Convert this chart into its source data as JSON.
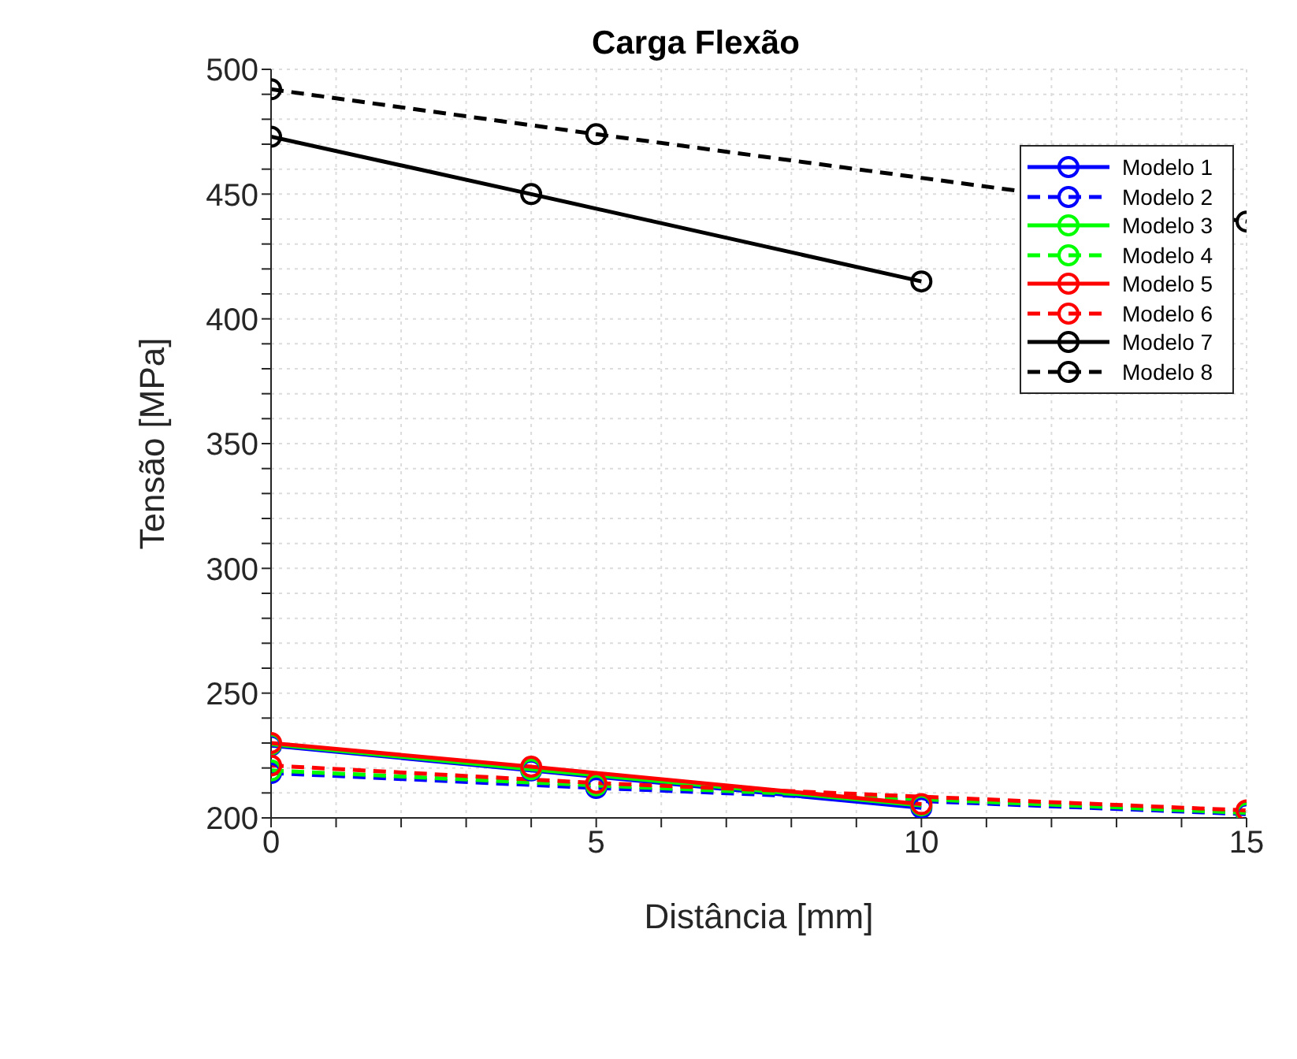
{
  "chart_data": {
    "type": "line",
    "title": "Carga Flexão",
    "xlabel": "Distância [mm]",
    "ylabel": "Tensão [MPa]",
    "xlim": [
      0,
      15
    ],
    "ylim": [
      200,
      500
    ],
    "xticks": [
      0,
      {
        "value": 1,
        "label": null
      },
      {
        "value": 2,
        "label": null
      },
      {
        "value": 3,
        "label": null
      },
      {
        "value": 4,
        "label": null
      },
      5,
      {
        "value": 6,
        "label": null
      },
      {
        "value": 7,
        "label": null
      },
      {
        "value": 8,
        "label": null
      },
      {
        "value": 9,
        "label": null
      },
      10,
      {
        "value": 11,
        "label": null
      },
      {
        "value": 12,
        "label": null
      },
      {
        "value": 13,
        "label": null
      },
      {
        "value": 14,
        "label": null
      },
      15
    ],
    "yticks": [
      200,
      {
        "value": 210,
        "label": null
      },
      {
        "value": 220,
        "label": null
      },
      {
        "value": 230,
        "label": null
      },
      {
        "value": 240,
        "label": null
      },
      250,
      {
        "value": 260,
        "label": null
      },
      {
        "value": 270,
        "label": null
      },
      {
        "value": 280,
        "label": null
      },
      {
        "value": 290,
        "label": null
      },
      300,
      {
        "value": 310,
        "label": null
      },
      {
        "value": 320,
        "label": null
      },
      {
        "value": 330,
        "label": null
      },
      {
        "value": 340,
        "label": null
      },
      350,
      {
        "value": 360,
        "label": null
      },
      {
        "value": 370,
        "label": null
      },
      {
        "value": 380,
        "label": null
      },
      {
        "value": 390,
        "label": null
      },
      400,
      {
        "value": 410,
        "label": null
      },
      {
        "value": 420,
        "label": null
      },
      {
        "value": 430,
        "label": null
      },
      {
        "value": 440,
        "label": null
      },
      450,
      {
        "value": 460,
        "label": null
      },
      {
        "value": 470,
        "label": null
      },
      {
        "value": 480,
        "label": null
      },
      {
        "value": 490,
        "label": null
      },
      500
    ],
    "grid": true,
    "legend": "top right",
    "marker": "circle",
    "series": [
      {
        "name": "Modelo 1",
        "color": "#0000ff",
        "line_style": "solid",
        "x": [
          0,
          4,
          10
        ],
        "values": [
          229,
          219,
          204
        ]
      },
      {
        "name": "Modelo 2",
        "color": "#0000ff",
        "line_style": "dashed",
        "x": [
          0,
          5,
          15
        ],
        "values": [
          218,
          212,
          201.5
        ]
      },
      {
        "name": "Modelo 3",
        "color": "#00ff00",
        "line_style": "solid",
        "x": [
          0,
          4,
          10
        ],
        "values": [
          229.5,
          219.5,
          205
        ]
      },
      {
        "name": "Modelo 4",
        "color": "#00ff00",
        "line_style": "dashed",
        "x": [
          0,
          5,
          15
        ],
        "values": [
          219,
          213,
          202
        ]
      },
      {
        "name": "Modelo 5",
        "color": "#ff0000",
        "line_style": "solid",
        "x": [
          0,
          4,
          10
        ],
        "values": [
          230,
          220.5,
          205.5
        ]
      },
      {
        "name": "Modelo 6",
        "color": "#ff0000",
        "line_style": "dashed",
        "x": [
          0,
          5,
          15
        ],
        "values": [
          221,
          214,
          203
        ]
      },
      {
        "name": "Modelo 7",
        "color": "#000000",
        "line_style": "solid",
        "x": [
          0,
          4,
          10
        ],
        "values": [
          473,
          450,
          415
        ]
      },
      {
        "name": "Modelo 8",
        "color": "#000000",
        "line_style": "dashed",
        "x": [
          0,
          5,
          15
        ],
        "values": [
          492,
          474,
          439
        ]
      }
    ]
  }
}
